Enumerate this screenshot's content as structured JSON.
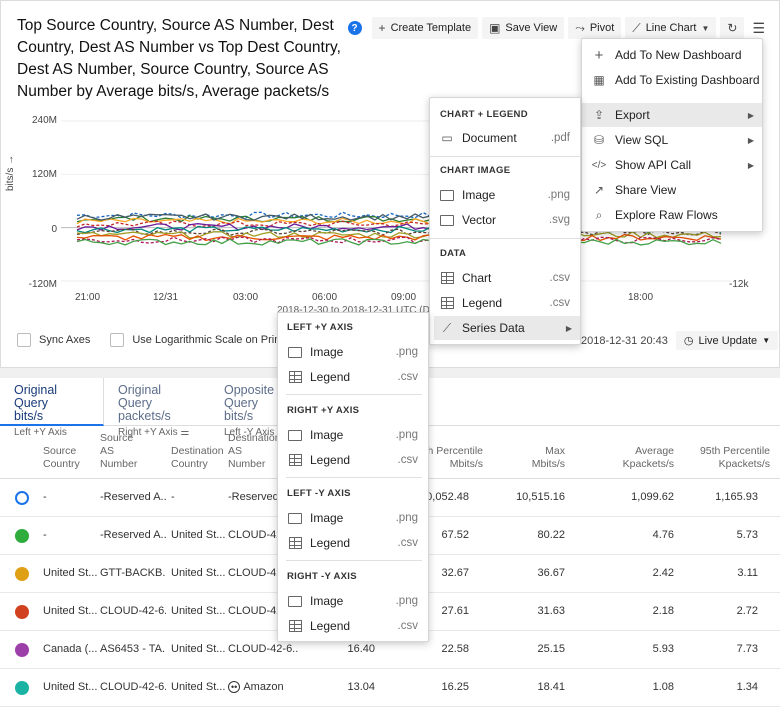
{
  "title": "Top Source Country, Source AS Number, Dest Country, Dest AS Number vs Top Dest Country, Dest AS Number, Source Country, Source AS Number by Average bits/s, Average packets/s",
  "toolbar": {
    "create_template": "Create Template",
    "save_view": "Save View",
    "pivot": "Pivot",
    "line_chart": "Line Chart"
  },
  "chart_data": {
    "type": "line",
    "ylabel": "bits/s →",
    "y_ticks": [
      "240M",
      "120M",
      "0",
      "-120M"
    ],
    "y2_ticks": [
      "-12k"
    ],
    "x_ticks": [
      "21:00",
      "12/31",
      "03:00",
      "06:00",
      "09:00",
      "18:00"
    ],
    "x_range_label": "2018-12-30 to 2018-12-31 UTC (Da...",
    "ylim": [
      -120,
      240
    ],
    "series_colors": [
      "#1565c0",
      "#2e7d32",
      "#f9a825",
      "#c62828",
      "#6a1b9a",
      "#00897b",
      "#5d4037",
      "#9e9d24",
      "#e65100",
      "#ad1457",
      "#455a64",
      "#43a047"
    ]
  },
  "controls": {
    "sync_axes": "Sync Axes",
    "log_scale": "Use Logarithmic Scale on Primary Axis",
    "timestamp": "2018-12-31 20:43",
    "live_update": "Live Update"
  },
  "tabs": [
    {
      "line1": "Original Query",
      "line2": "bits/s",
      "sub": "Left +Y Axis"
    },
    {
      "line1": "Original Query",
      "line2": "packets/s",
      "sub": "Right +Y Axis"
    },
    {
      "line1": "Opposite Query",
      "line2": "bits/s",
      "sub": "Left -Y Axis"
    }
  ],
  "table": {
    "headers": {
      "src_country": [
        "Source",
        "Country"
      ],
      "src_as": [
        "Source",
        "AS",
        "Number"
      ],
      "dst_country": [
        "Destination",
        "Country"
      ],
      "dst_as": [
        "Destination",
        "AS",
        "Number"
      ],
      "p95": [
        "95th Percentile",
        "Mbits/s"
      ],
      "max": [
        "Max",
        "Mbits/s"
      ],
      "avg": [
        "Average",
        "Kpackets/s"
      ],
      "p95k": [
        "95th Percentile",
        "Kpackets/s"
      ]
    },
    "rows": [
      {
        "color": "#1a73e8",
        "hollow": true,
        "src_country": "-",
        "src_as": "-Reserved A...",
        "dst_country": "-",
        "dst_as": "-Reserved A...",
        "avg_m": "",
        "p95": "10,052.48",
        "max": "10,515.16",
        "avg": "1,099.62",
        "p95k": "1,165.93"
      },
      {
        "color": "#2eac3c",
        "hollow": false,
        "src_country": "-",
        "src_as": "-Reserved A...",
        "dst_country": "United St...",
        "dst_as": "CLOUD-42-...",
        "avg_m": "",
        "p95": "67.52",
        "max": "80.22",
        "avg": "4.76",
        "p95k": "5.73"
      },
      {
        "color": "#e0a016",
        "hollow": false,
        "src_country": "United St...",
        "src_as": "GTT-BACKB...",
        "dst_country": "United St...",
        "dst_as": "CLOUD-42-...",
        "avg_m": "",
        "p95": "32.67",
        "max": "36.67",
        "avg": "2.42",
        "p95k": "3.11"
      },
      {
        "color": "#d2411f",
        "hollow": false,
        "src_country": "United St...",
        "src_as": "CLOUD-42-6...",
        "dst_country": "United St...",
        "dst_as": "CLOUD-42-...",
        "avg_m": "",
        "p95": "27.61",
        "max": "31.63",
        "avg": "2.18",
        "p95k": "2.72"
      },
      {
        "color": "#9c3fa8",
        "hollow": false,
        "src_country": "Canada (...",
        "src_as": "AS6453 - TA...",
        "dst_country": "United St...",
        "dst_as": "CLOUD-42-6...",
        "avg_m": "16.40",
        "p95": "22.58",
        "max": "25.15",
        "avg": "5.93",
        "p95k": "7.73"
      },
      {
        "color": "#1ab3a3",
        "hollow": false,
        "src_country": "United St...",
        "src_as": "CLOUD-42-6...",
        "dst_country": "United St...",
        "dst_as": "Amazon",
        "avg_m": "13.04",
        "p95": "16.25",
        "max": "18.41",
        "avg": "1.08",
        "p95k": "1.34"
      }
    ]
  },
  "dashboard_menu": {
    "items": [
      "Add To New Dashboard",
      "Add To Existing Dashboard",
      "Export",
      "View SQL",
      "Show API Call",
      "Share View",
      "Explore Raw Flows"
    ]
  },
  "export_menu": {
    "sec_chart_legend": "CHART + LEGEND",
    "document": "Document",
    "pdf": ".pdf",
    "sec_chart_image": "CHART IMAGE",
    "image": "Image",
    "png": ".png",
    "vector": "Vector",
    "svg": ".svg",
    "sec_data": "DATA",
    "chart": "Chart",
    "csv": ".csv",
    "legend": "Legend",
    "series_data": "Series Data"
  },
  "series_menu": {
    "sections": [
      {
        "title": "LEFT +Y AXIS"
      },
      {
        "title": "RIGHT +Y AXIS"
      },
      {
        "title": "LEFT -Y AXIS"
      },
      {
        "title": "RIGHT -Y AXIS"
      }
    ],
    "image": "Image",
    "png": ".png",
    "legend": "Legend",
    "csv": ".csv"
  }
}
